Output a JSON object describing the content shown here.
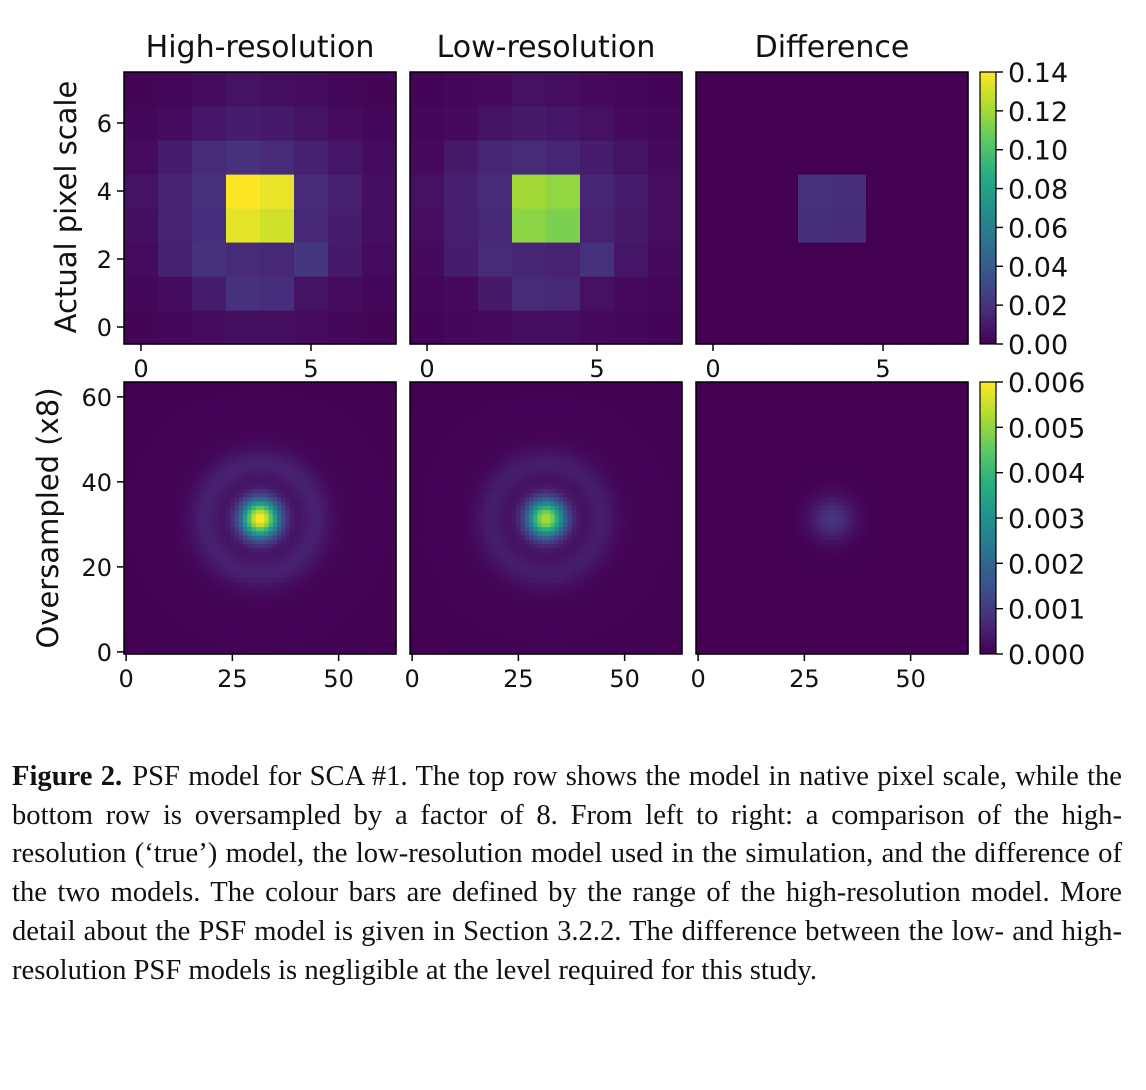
{
  "figure": {
    "col_titles": [
      "High-resolution",
      "Low-resolution",
      "Difference"
    ],
    "row_labels": [
      "Actual pixel scale",
      "Oversampled (x8)"
    ],
    "colormap": "viridis"
  },
  "chart_data": [
    {
      "type": "heatmap",
      "title": "High-resolution",
      "ylabel": "Actual pixel scale",
      "grid_size": 8,
      "xlim": [
        -0.5,
        7.5
      ],
      "ylim": [
        -0.5,
        7.5
      ],
      "xticks": [
        0,
        5
      ],
      "yticks": [
        0,
        2,
        4,
        6
      ],
      "xtick_labels": [
        "0",
        "5"
      ],
      "ytick_labels": [
        "0",
        "2",
        "4",
        "6"
      ],
      "vmin": 0,
      "vmax": 0.14,
      "profile": "pixel",
      "peak": 0.14,
      "center": [
        3.5,
        3.5
      ]
    },
    {
      "type": "heatmap",
      "title": "Low-resolution",
      "grid_size": 8,
      "xlim": [
        -0.5,
        7.5
      ],
      "ylim": [
        -0.5,
        7.5
      ],
      "xticks": [
        0,
        5
      ],
      "xtick_labels": [
        "0",
        "5"
      ],
      "vmin": 0,
      "vmax": 0.14,
      "profile": "pixel",
      "peak": 0.12,
      "center": [
        3.5,
        3.5
      ]
    },
    {
      "type": "heatmap",
      "title": "Difference",
      "grid_size": 8,
      "xlim": [
        -0.5,
        7.5
      ],
      "ylim": [
        -0.5,
        7.5
      ],
      "xticks": [
        0,
        5
      ],
      "xtick_labels": [
        "0",
        "5"
      ],
      "vmin": 0,
      "vmax": 0.14,
      "profile": "pixel-diff",
      "peak": 0.02,
      "center": [
        3.5,
        3.5
      ],
      "colorbar": {
        "ticks": [
          "0.14",
          "0.12",
          "0.10",
          "0.08",
          "0.06",
          "0.04",
          "0.02",
          "0.00"
        ]
      }
    },
    {
      "type": "heatmap",
      "ylabel": "Oversampled (x8)",
      "grid_size": 64,
      "xlim": [
        -0.5,
        63.5
      ],
      "ylim": [
        -0.5,
        63.5
      ],
      "xticks": [
        0,
        25,
        50
      ],
      "yticks": [
        0,
        20,
        40,
        60
      ],
      "xtick_labels": [
        "0",
        "25",
        "50"
      ],
      "ytick_labels": [
        "0",
        "20",
        "40",
        "60"
      ],
      "vmin": 0,
      "vmax": 0.006,
      "profile": "airy",
      "peak": 0.006,
      "center": [
        31.5,
        31.5
      ]
    },
    {
      "type": "heatmap",
      "grid_size": 64,
      "xlim": [
        -0.5,
        63.5
      ],
      "ylim": [
        -0.5,
        63.5
      ],
      "xticks": [
        0,
        25,
        50
      ],
      "xtick_labels": [
        "0",
        "25",
        "50"
      ],
      "vmin": 0,
      "vmax": 0.006,
      "profile": "airy",
      "peak": 0.0052,
      "center": [
        31.5,
        31.5
      ]
    },
    {
      "type": "heatmap",
      "grid_size": 64,
      "xlim": [
        -0.5,
        63.5
      ],
      "ylim": [
        -0.5,
        63.5
      ],
      "xticks": [
        0,
        25,
        50
      ],
      "xtick_labels": [
        "0",
        "25",
        "50"
      ],
      "vmin": 0,
      "vmax": 0.006,
      "profile": "airy-diff",
      "peak": 0.0009,
      "center": [
        31.5,
        31.5
      ],
      "colorbar": {
        "ticks": [
          "0.006",
          "0.005",
          "0.004",
          "0.003",
          "0.002",
          "0.001",
          "0.000"
        ]
      }
    }
  ],
  "caption": {
    "label": "Figure 2.",
    "text": "PSF model for SCA #1. The top row shows the model in native pixel scale, while the bottom row is oversampled by a factor of 8. From left to right: a comparison of the high-resolution (‘true’) model, the low-resolution model used in the simulation, and the difference of the two models. The colour bars are defined by the range of the high-resolution model. More detail about the PSF model is given in Section 3.2.2. The difference between the low- and high-resolution PSF models is negligible at the level required for this study."
  }
}
